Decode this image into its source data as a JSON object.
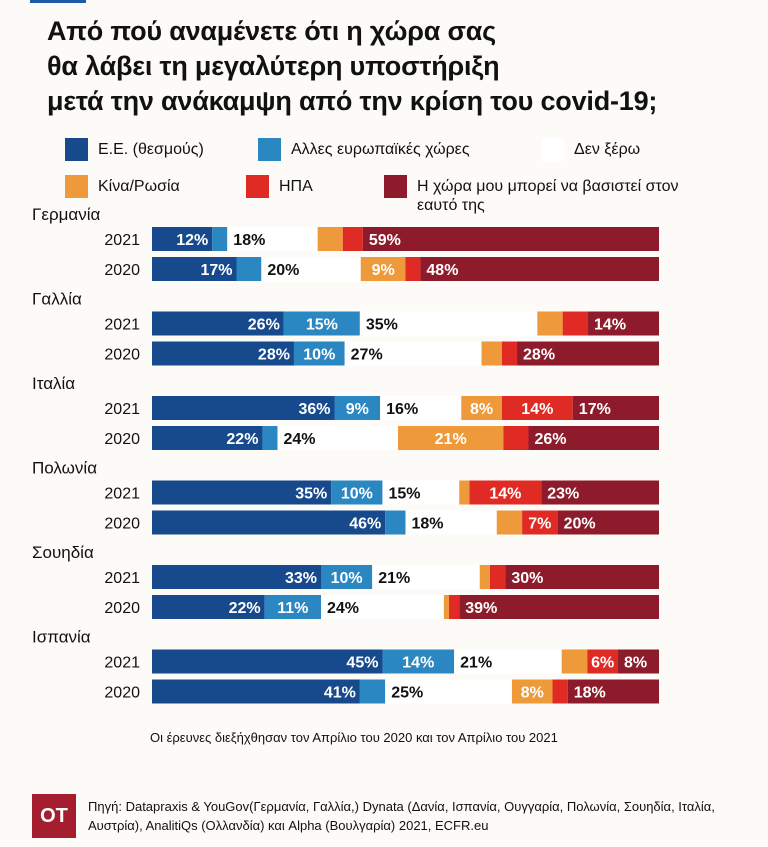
{
  "title_lines": [
    "Από πού αναμένετε ότι η χώρα σας",
    "θα λάβει τη μεγαλύτερη υποστήριξη",
    "μετά την ανάκαμψη από την κρίση του covid-19;"
  ],
  "note": "Οι έρευνες διεξήχθησαν τον Απρίλιο του 2020 και τον Απρίλιο του 2021",
  "logo": "OT",
  "source": "Πηγή: Datapraxis & YouGov(Γερμανία, Γαλλία,) Dynata (Δανία, Ισπανία, Ουγγαρία, Πολωνία, Σουηδία, Ιταλία, Αυστρία), AnalitiQs (Ολλανδία) και Alpha (Βουλγαρία) 2021, ECFR.eu",
  "colors": {
    "eu": "#174a8c",
    "other_eu": "#2b87c1",
    "dont_know": "#ffffff",
    "china_russia": "#ef9a3a",
    "usa": "#e02b24",
    "self": "#8e1b2b",
    "background": "#fdfbf7"
  },
  "chart_data": {
    "type": "bar",
    "orientation": "horizontal",
    "stacked": true,
    "normalized": true,
    "legend": [
      {
        "key": "eu",
        "label": "Ε.Ε. (θεσμούς)"
      },
      {
        "key": "other_eu",
        "label": "Αλλες ευρωπαϊκές χώρες"
      },
      {
        "key": "dont_know",
        "label": "Δεν ξέρω"
      },
      {
        "key": "china_russia",
        "label": "Κίνα/Ρωσία"
      },
      {
        "key": "usa",
        "label": "ΗΠΑ"
      },
      {
        "key": "self",
        "label": "Η χώρα μου μπορεί να βασιστεί στον εαυτό της"
      }
    ],
    "legend_placement": "top",
    "value_suffix": "%",
    "groups": [
      {
        "country": "Γερμανία",
        "rows": [
          {
            "year": "2021",
            "segments": [
              {
                "key": "eu",
                "value": 12,
                "label": "12%"
              },
              {
                "key": "other_eu",
                "value": 3
              },
              {
                "key": "dont_know",
                "value": 18,
                "label": "18%"
              },
              {
                "key": "china_russia",
                "value": 5
              },
              {
                "key": "usa",
                "value": 4
              },
              {
                "key": "self",
                "value": 59,
                "label": "59%"
              }
            ]
          },
          {
            "year": "2020",
            "segments": [
              {
                "key": "eu",
                "value": 17,
                "label": "17%"
              },
              {
                "key": "other_eu",
                "value": 5
              },
              {
                "key": "dont_know",
                "value": 20,
                "label": "20%"
              },
              {
                "key": "china_russia",
                "value": 9,
                "label": "9%"
              },
              {
                "key": "usa",
                "value": 3
              },
              {
                "key": "self",
                "value": 48,
                "label": "48%"
              }
            ]
          }
        ]
      },
      {
        "country": "Γαλλία",
        "rows": [
          {
            "year": "2021",
            "segments": [
              {
                "key": "eu",
                "value": 26,
                "label": "26%"
              },
              {
                "key": "other_eu",
                "value": 15,
                "label": "15%"
              },
              {
                "key": "dont_know",
                "value": 35,
                "label": "35%"
              },
              {
                "key": "china_russia",
                "value": 5
              },
              {
                "key": "usa",
                "value": 5
              },
              {
                "key": "self",
                "value": 14,
                "label": "14%"
              }
            ]
          },
          {
            "year": "2020",
            "segments": [
              {
                "key": "eu",
                "value": 28,
                "label": "28%"
              },
              {
                "key": "other_eu",
                "value": 10,
                "label": "10%"
              },
              {
                "key": "dont_know",
                "value": 27,
                "label": "27%"
              },
              {
                "key": "china_russia",
                "value": 4
              },
              {
                "key": "usa",
                "value": 3
              },
              {
                "key": "self",
                "value": 28,
                "label": "28%"
              }
            ]
          }
        ]
      },
      {
        "country": "Ιταλία",
        "rows": [
          {
            "year": "2021",
            "segments": [
              {
                "key": "eu",
                "value": 36,
                "label": "36%"
              },
              {
                "key": "other_eu",
                "value": 9,
                "label": "9%"
              },
              {
                "key": "dont_know",
                "value": 16,
                "label": "16%"
              },
              {
                "key": "china_russia",
                "value": 8,
                "label": "8%"
              },
              {
                "key": "usa",
                "value": 14,
                "label": "14%"
              },
              {
                "key": "self",
                "value": 17,
                "label": "17%"
              }
            ]
          },
          {
            "year": "2020",
            "segments": [
              {
                "key": "eu",
                "value": 22,
                "label": "22%"
              },
              {
                "key": "other_eu",
                "value": 3
              },
              {
                "key": "dont_know",
                "value": 24,
                "label": "24%"
              },
              {
                "key": "china_russia",
                "value": 21,
                "label": "21%"
              },
              {
                "key": "usa",
                "value": 5
              },
              {
                "key": "self",
                "value": 26,
                "label": "26%"
              }
            ]
          }
        ]
      },
      {
        "country": "Πολωνία",
        "rows": [
          {
            "year": "2021",
            "segments": [
              {
                "key": "eu",
                "value": 35,
                "label": "35%"
              },
              {
                "key": "other_eu",
                "value": 10,
                "label": "10%"
              },
              {
                "key": "dont_know",
                "value": 15,
                "label": "15%"
              },
              {
                "key": "china_russia",
                "value": 2
              },
              {
                "key": "usa",
                "value": 14,
                "label": "14%"
              },
              {
                "key": "self",
                "value": 23,
                "label": "23%"
              }
            ]
          },
          {
            "year": "2020",
            "segments": [
              {
                "key": "eu",
                "value": 46,
                "label": "46%"
              },
              {
                "key": "other_eu",
                "value": 4
              },
              {
                "key": "dont_know",
                "value": 18,
                "label": "18%"
              },
              {
                "key": "china_russia",
                "value": 5
              },
              {
                "key": "usa",
                "value": 7,
                "label": "7%"
              },
              {
                "key": "self",
                "value": 20,
                "label": "20%"
              }
            ]
          }
        ]
      },
      {
        "country": "Σουηδία",
        "rows": [
          {
            "year": "2021",
            "segments": [
              {
                "key": "eu",
                "value": 33,
                "label": "33%"
              },
              {
                "key": "other_eu",
                "value": 10,
                "label": "10%"
              },
              {
                "key": "dont_know",
                "value": 21,
                "label": "21%"
              },
              {
                "key": "china_russia",
                "value": 2
              },
              {
                "key": "usa",
                "value": 3
              },
              {
                "key": "self",
                "value": 30,
                "label": "30%"
              }
            ]
          },
          {
            "year": "2020",
            "segments": [
              {
                "key": "eu",
                "value": 22,
                "label": "22%"
              },
              {
                "key": "other_eu",
                "value": 11,
                "label": "11%"
              },
              {
                "key": "dont_know",
                "value": 24,
                "label": "24%"
              },
              {
                "key": "china_russia",
                "value": 1
              },
              {
                "key": "usa",
                "value": 2
              },
              {
                "key": "self",
                "value": 39,
                "label": "39%"
              }
            ]
          }
        ]
      },
      {
        "country": "Ισπανία",
        "rows": [
          {
            "year": "2021",
            "segments": [
              {
                "key": "eu",
                "value": 45,
                "label": "45%"
              },
              {
                "key": "other_eu",
                "value": 14,
                "label": "14%"
              },
              {
                "key": "dont_know",
                "value": 21,
                "label": "21%"
              },
              {
                "key": "china_russia",
                "value": 5
              },
              {
                "key": "usa",
                "value": 6,
                "label": "6%"
              },
              {
                "key": "self",
                "value": 8,
                "label": "8%"
              }
            ]
          },
          {
            "year": "2020",
            "segments": [
              {
                "key": "eu",
                "value": 41,
                "label": "41%"
              },
              {
                "key": "other_eu",
                "value": 5
              },
              {
                "key": "dont_know",
                "value": 25,
                "label": "25%"
              },
              {
                "key": "china_russia",
                "value": 8,
                "label": "8%"
              },
              {
                "key": "usa",
                "value": 3
              },
              {
                "key": "self",
                "value": 18,
                "label": "18%"
              }
            ]
          }
        ]
      }
    ]
  }
}
